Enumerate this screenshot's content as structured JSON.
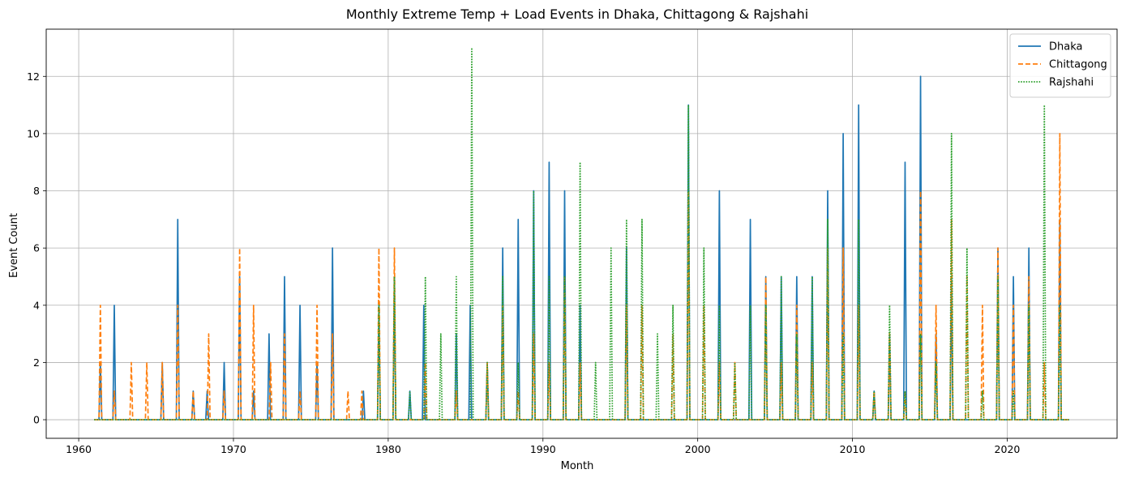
{
  "chart_data": {
    "type": "line",
    "title": "Monthly Extreme Temp + Load Events in Dhaka, Chittagong & Rajshahi",
    "xlabel": "Month",
    "ylabel": "Event Count",
    "xlim": [
      1957.9,
      2027.1
    ],
    "ylim": [
      -0.65,
      13.65
    ],
    "x_ticks": [
      1960,
      1970,
      1980,
      1990,
      2000,
      2010,
      2020
    ],
    "y_ticks": [
      0,
      2,
      4,
      6,
      8,
      10,
      12
    ],
    "grid": true,
    "legend_position": "top-right",
    "x_range_data": [
      1961.0,
      2024.0
    ],
    "series": [
      {
        "name": "Dhaka",
        "color": "#1f77b4",
        "style": "solid",
        "events": [
          [
            1961.4,
            2
          ],
          [
            1962.3,
            4
          ],
          [
            1965.4,
            2
          ],
          [
            1966.4,
            7
          ],
          [
            1967.4,
            1
          ],
          [
            1968.3,
            1
          ],
          [
            1969.4,
            2
          ],
          [
            1970.4,
            5
          ],
          [
            1971.3,
            1
          ],
          [
            1972.3,
            3
          ],
          [
            1973.3,
            5
          ],
          [
            1974.3,
            4
          ],
          [
            1975.4,
            2
          ],
          [
            1976.4,
            6
          ],
          [
            1978.4,
            1
          ],
          [
            1979.4,
            4
          ],
          [
            1980.4,
            5
          ],
          [
            1981.4,
            1
          ],
          [
            1982.3,
            4
          ],
          [
            1984.4,
            3
          ],
          [
            1985.3,
            4
          ],
          [
            1986.4,
            2
          ],
          [
            1987.4,
            6
          ],
          [
            1988.4,
            7
          ],
          [
            1989.4,
            8
          ],
          [
            1990.4,
            9
          ],
          [
            1991.4,
            8
          ],
          [
            1992.4,
            4
          ],
          [
            1995.4,
            6
          ],
          [
            1999.4,
            11
          ],
          [
            2001.4,
            8
          ],
          [
            2003.4,
            7
          ],
          [
            2004.4,
            5
          ],
          [
            2005.4,
            5
          ],
          [
            2006.4,
            5
          ],
          [
            2007.4,
            5
          ],
          [
            2008.4,
            8
          ],
          [
            2009.4,
            10
          ],
          [
            2010.4,
            11
          ],
          [
            2011.4,
            1
          ],
          [
            2012.4,
            3
          ],
          [
            2013.4,
            9
          ],
          [
            2014.4,
            12
          ],
          [
            2015.4,
            3
          ],
          [
            2016.4,
            5
          ],
          [
            2019.4,
            6
          ],
          [
            2020.4,
            5
          ],
          [
            2021.4,
            6
          ],
          [
            2023.4,
            7
          ]
        ]
      },
      {
        "name": "Chittagong",
        "color": "#ff7f0e",
        "style": "dashed",
        "events": [
          [
            1961.4,
            4
          ],
          [
            1962.3,
            1
          ],
          [
            1963.4,
            2
          ],
          [
            1964.4,
            2
          ],
          [
            1965.4,
            2
          ],
          [
            1966.4,
            4
          ],
          [
            1967.4,
            1
          ],
          [
            1968.4,
            3
          ],
          [
            1969.4,
            1
          ],
          [
            1970.4,
            6
          ],
          [
            1971.3,
            4
          ],
          [
            1972.4,
            2
          ],
          [
            1973.3,
            3
          ],
          [
            1974.3,
            1
          ],
          [
            1975.4,
            4
          ],
          [
            1976.4,
            3
          ],
          [
            1977.4,
            1
          ],
          [
            1978.3,
            1
          ],
          [
            1979.4,
            6
          ],
          [
            1980.4,
            6
          ],
          [
            1982.4,
            2
          ],
          [
            1984.4,
            1
          ],
          [
            1986.4,
            2
          ],
          [
            1987.4,
            4
          ],
          [
            1988.4,
            1
          ],
          [
            1989.4,
            3
          ],
          [
            1990.4,
            2
          ],
          [
            1991.4,
            5
          ],
          [
            1992.4,
            2
          ],
          [
            1995.4,
            4
          ],
          [
            1996.4,
            4
          ],
          [
            1998.4,
            3
          ],
          [
            1999.4,
            8
          ],
          [
            2000.4,
            4
          ],
          [
            2001.4,
            2
          ],
          [
            2002.4,
            2
          ],
          [
            2004.4,
            5
          ],
          [
            2005.4,
            2
          ],
          [
            2006.4,
            4
          ],
          [
            2007.4,
            2
          ],
          [
            2008.4,
            6
          ],
          [
            2009.4,
            6
          ],
          [
            2010.4,
            4
          ],
          [
            2011.4,
            1
          ],
          [
            2012.4,
            3
          ],
          [
            2013.4,
            1
          ],
          [
            2014.4,
            8
          ],
          [
            2015.4,
            4
          ],
          [
            2016.4,
            7
          ],
          [
            2017.4,
            5
          ],
          [
            2018.4,
            4
          ],
          [
            2019.4,
            6
          ],
          [
            2020.4,
            4
          ],
          [
            2021.4,
            5
          ],
          [
            2022.4,
            2
          ],
          [
            2023.4,
            10
          ]
        ]
      },
      {
        "name": "Rajshahi",
        "color": "#2ca02c",
        "style": "dotted",
        "events": [
          [
            1979.4,
            4
          ],
          [
            1980.4,
            5
          ],
          [
            1981.4,
            1
          ],
          [
            1982.4,
            5
          ],
          [
            1983.4,
            3
          ],
          [
            1984.4,
            5
          ],
          [
            1985.4,
            13
          ],
          [
            1986.4,
            2
          ],
          [
            1987.4,
            5
          ],
          [
            1988.4,
            2
          ],
          [
            1989.4,
            8
          ],
          [
            1990.4,
            5
          ],
          [
            1991.4,
            5
          ],
          [
            1992.4,
            9
          ],
          [
            1993.4,
            2
          ],
          [
            1994.4,
            6
          ],
          [
            1995.4,
            7
          ],
          [
            1996.4,
            7
          ],
          [
            1997.4,
            3
          ],
          [
            1998.4,
            4
          ],
          [
            1999.4,
            11
          ],
          [
            2000.4,
            6
          ],
          [
            2001.4,
            4
          ],
          [
            2002.4,
            2
          ],
          [
            2003.4,
            4
          ],
          [
            2004.4,
            4
          ],
          [
            2005.4,
            5
          ],
          [
            2006.4,
            3
          ],
          [
            2007.4,
            5
          ],
          [
            2008.4,
            7
          ],
          [
            2009.4,
            3
          ],
          [
            2010.4,
            7
          ],
          [
            2011.4,
            1
          ],
          [
            2012.4,
            4
          ],
          [
            2013.4,
            1
          ],
          [
            2014.4,
            3
          ],
          [
            2015.4,
            2
          ],
          [
            2016.4,
            10
          ],
          [
            2017.4,
            6
          ],
          [
            2018.4,
            1
          ],
          [
            2019.4,
            5
          ],
          [
            2020.4,
            1
          ],
          [
            2021.4,
            4
          ],
          [
            2022.4,
            11
          ],
          [
            2023.4,
            4
          ]
        ]
      }
    ]
  }
}
